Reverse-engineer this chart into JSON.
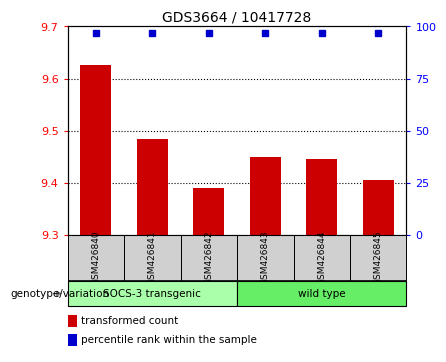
{
  "title": "GDS3664 / 10417728",
  "samples": [
    "GSM426840",
    "GSM426841",
    "GSM426842",
    "GSM426843",
    "GSM426844",
    "GSM426845"
  ],
  "bar_values": [
    9.625,
    9.485,
    9.39,
    9.45,
    9.445,
    9.405
  ],
  "bar_color": "#cc0000",
  "dot_color": "#0000cc",
  "dot_percentile": 97,
  "ylim_left": [
    9.3,
    9.7
  ],
  "ylim_right": [
    0,
    100
  ],
  "yticks_left": [
    9.3,
    9.4,
    9.5,
    9.6,
    9.7
  ],
  "yticks_right": [
    0,
    25,
    50,
    75,
    100
  ],
  "grid_values": [
    9.4,
    9.5,
    9.6
  ],
  "group1_label": "SOCS-3 transgenic",
  "group2_label": "wild type",
  "group1_color": "#aaffaa",
  "group2_color": "#66ee66",
  "group_label": "genotype/variation",
  "legend_bar_label": "transformed count",
  "legend_dot_label": "percentile rank within the sample",
  "bar_bottom": 9.3,
  "label_bg": "#d0d0d0",
  "fig_bg": "#ffffff"
}
